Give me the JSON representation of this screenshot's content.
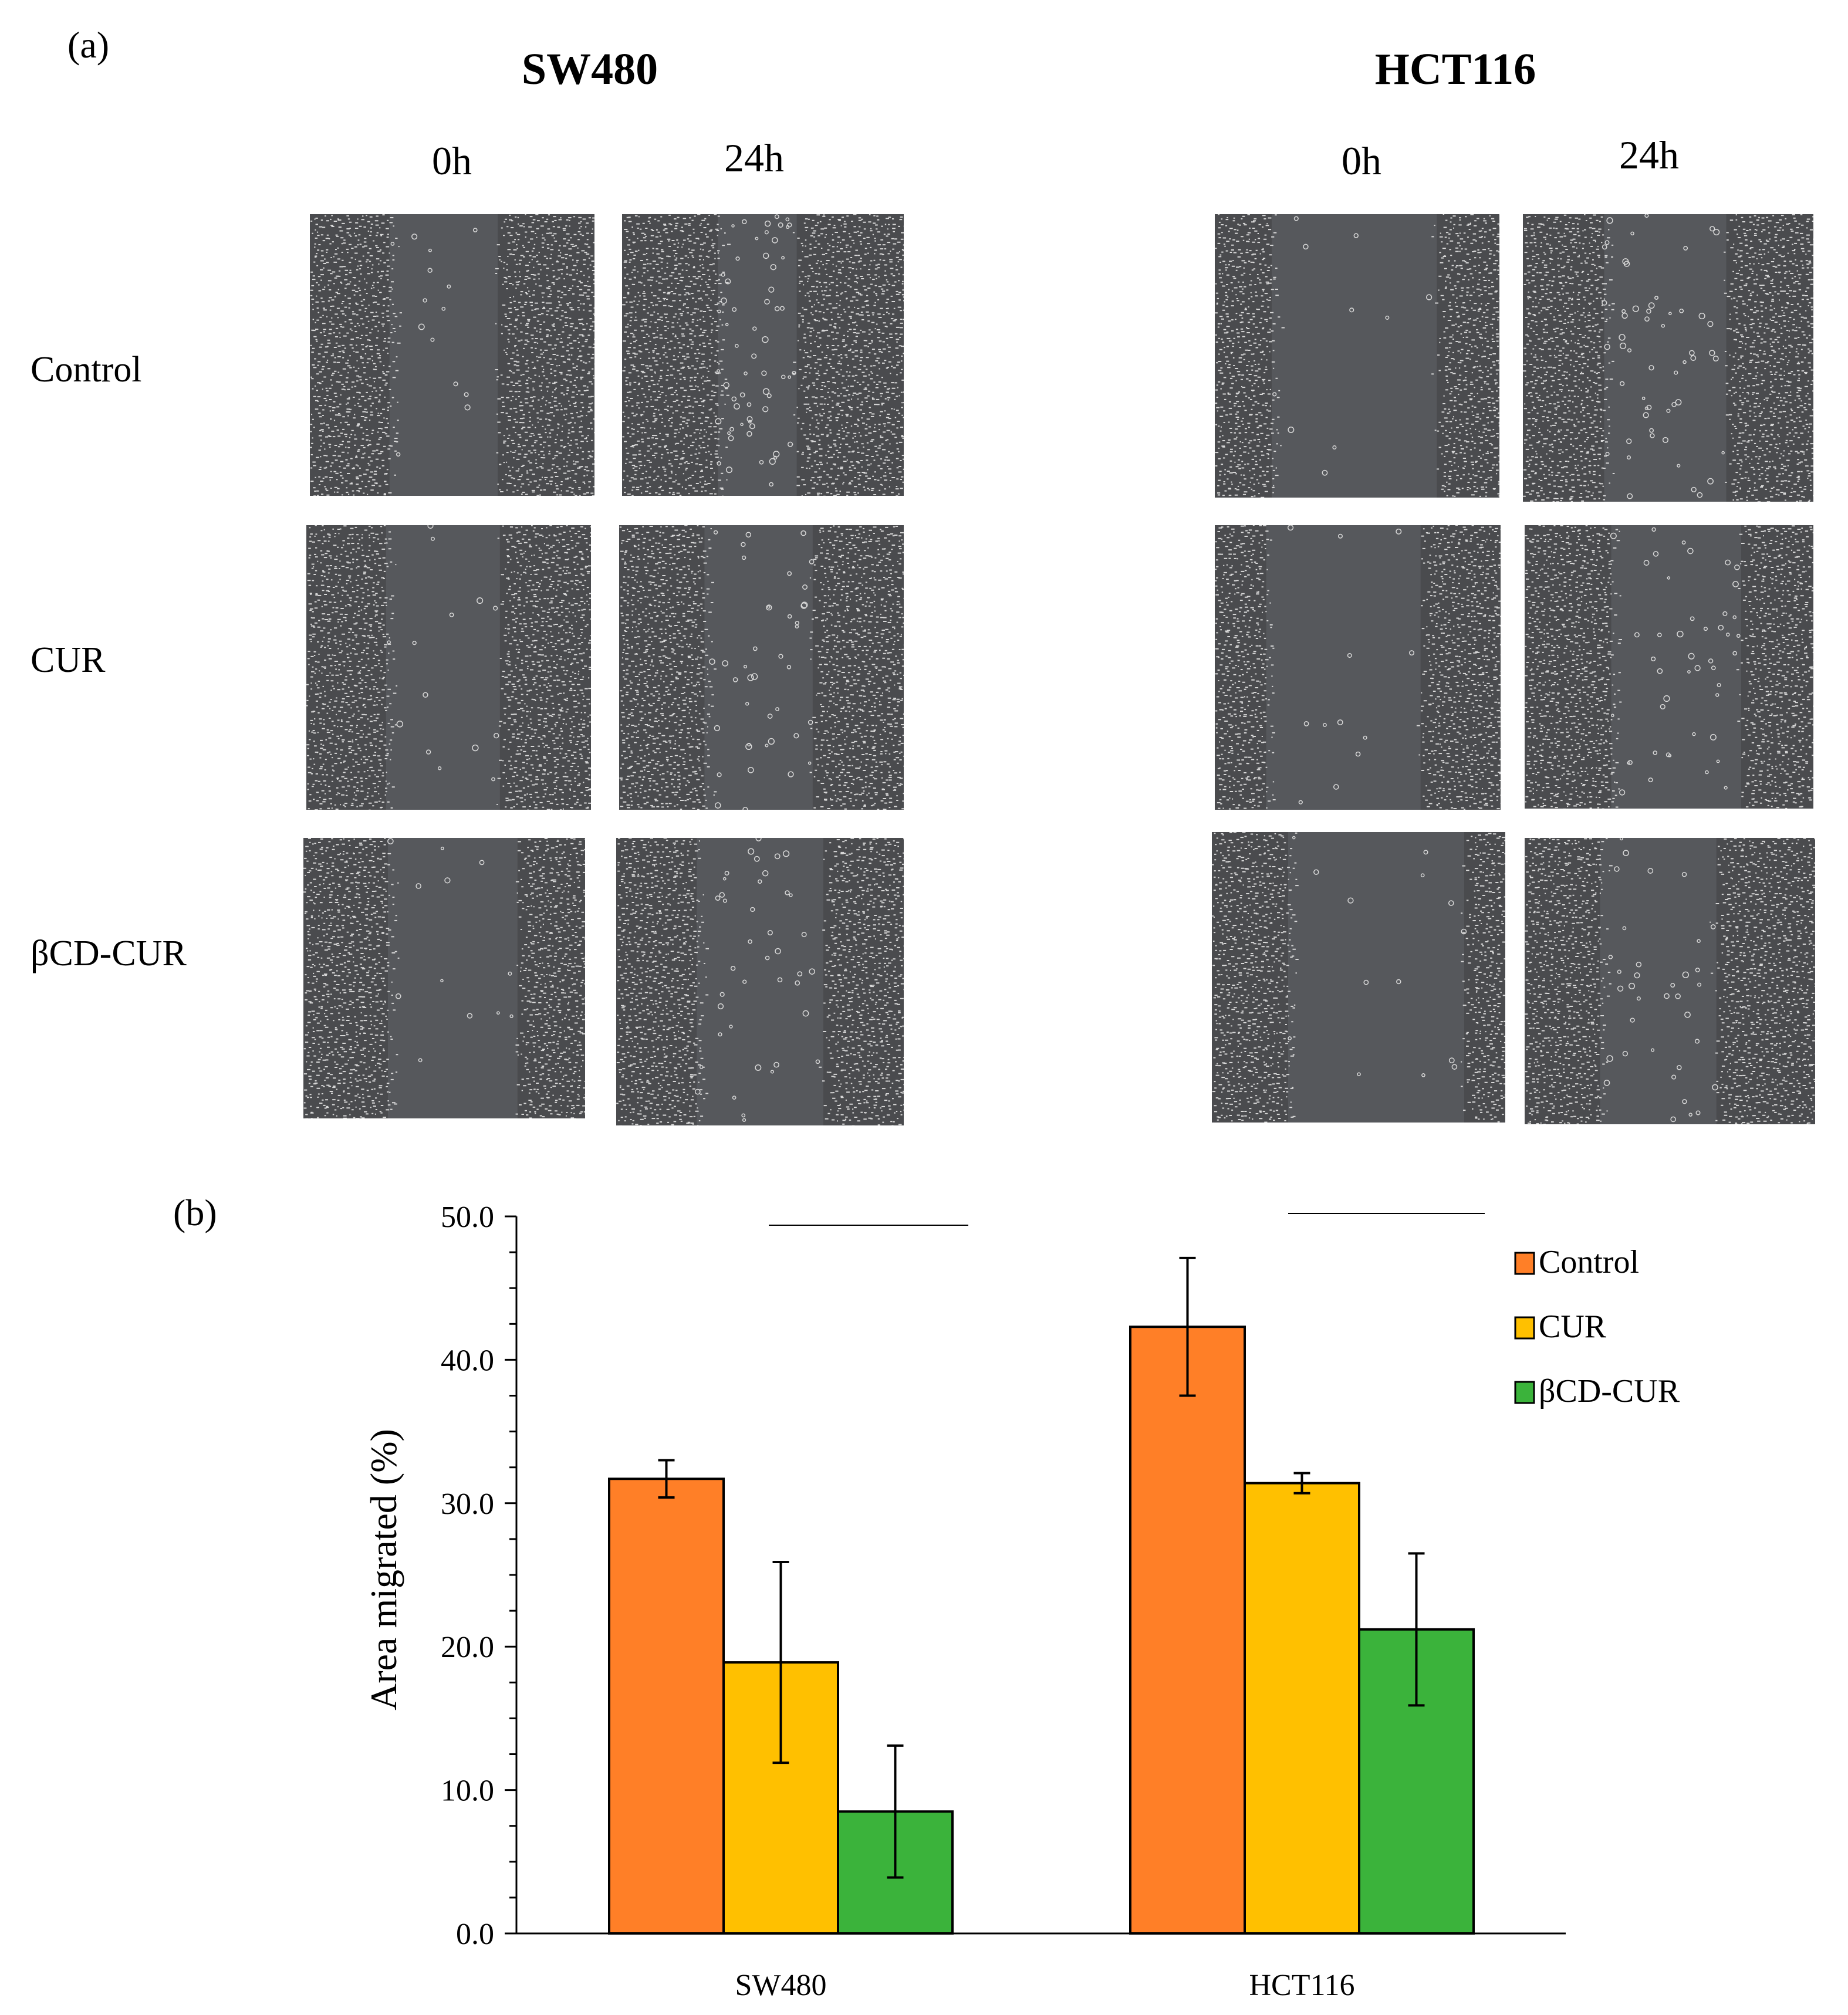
{
  "panel_a": {
    "label": "(a)",
    "cell_lines": [
      "SW480",
      "HCT116"
    ],
    "time_points": [
      "0h",
      "24h"
    ],
    "treatments": [
      "Control",
      "CUR",
      "βCD-CUR"
    ]
  },
  "panel_b": {
    "label": "(b)"
  },
  "colors": {
    "control": "#FF7F27",
    "cur": "#FFC000",
    "bcd_cur": "#3BB33B",
    "micrograph_gap": "#56585c",
    "micrograph_cells": "#d8d8d8"
  },
  "chart_data": {
    "type": "bar",
    "categories": [
      "SW480",
      "HCT116"
    ],
    "series": [
      {
        "name": "Control",
        "values": [
          31.7,
          42.3
        ],
        "errors": [
          1.3,
          4.8
        ]
      },
      {
        "name": "CUR",
        "values": [
          18.9,
          31.4
        ],
        "errors": [
          7.0,
          0.7
        ]
      },
      {
        "name": "βCD-CUR",
        "values": [
          8.5,
          21.2
        ],
        "errors": [
          4.6,
          5.3
        ]
      }
    ],
    "ylabel": "Area migrated (%)",
    "xlabel": "",
    "ylim": [
      0,
      50
    ],
    "yticks": [
      "0.0",
      "10.0",
      "20.0",
      "30.0",
      "40.0",
      "50.0"
    ],
    "legend_position": "top-right",
    "significance_brackets": 2
  }
}
